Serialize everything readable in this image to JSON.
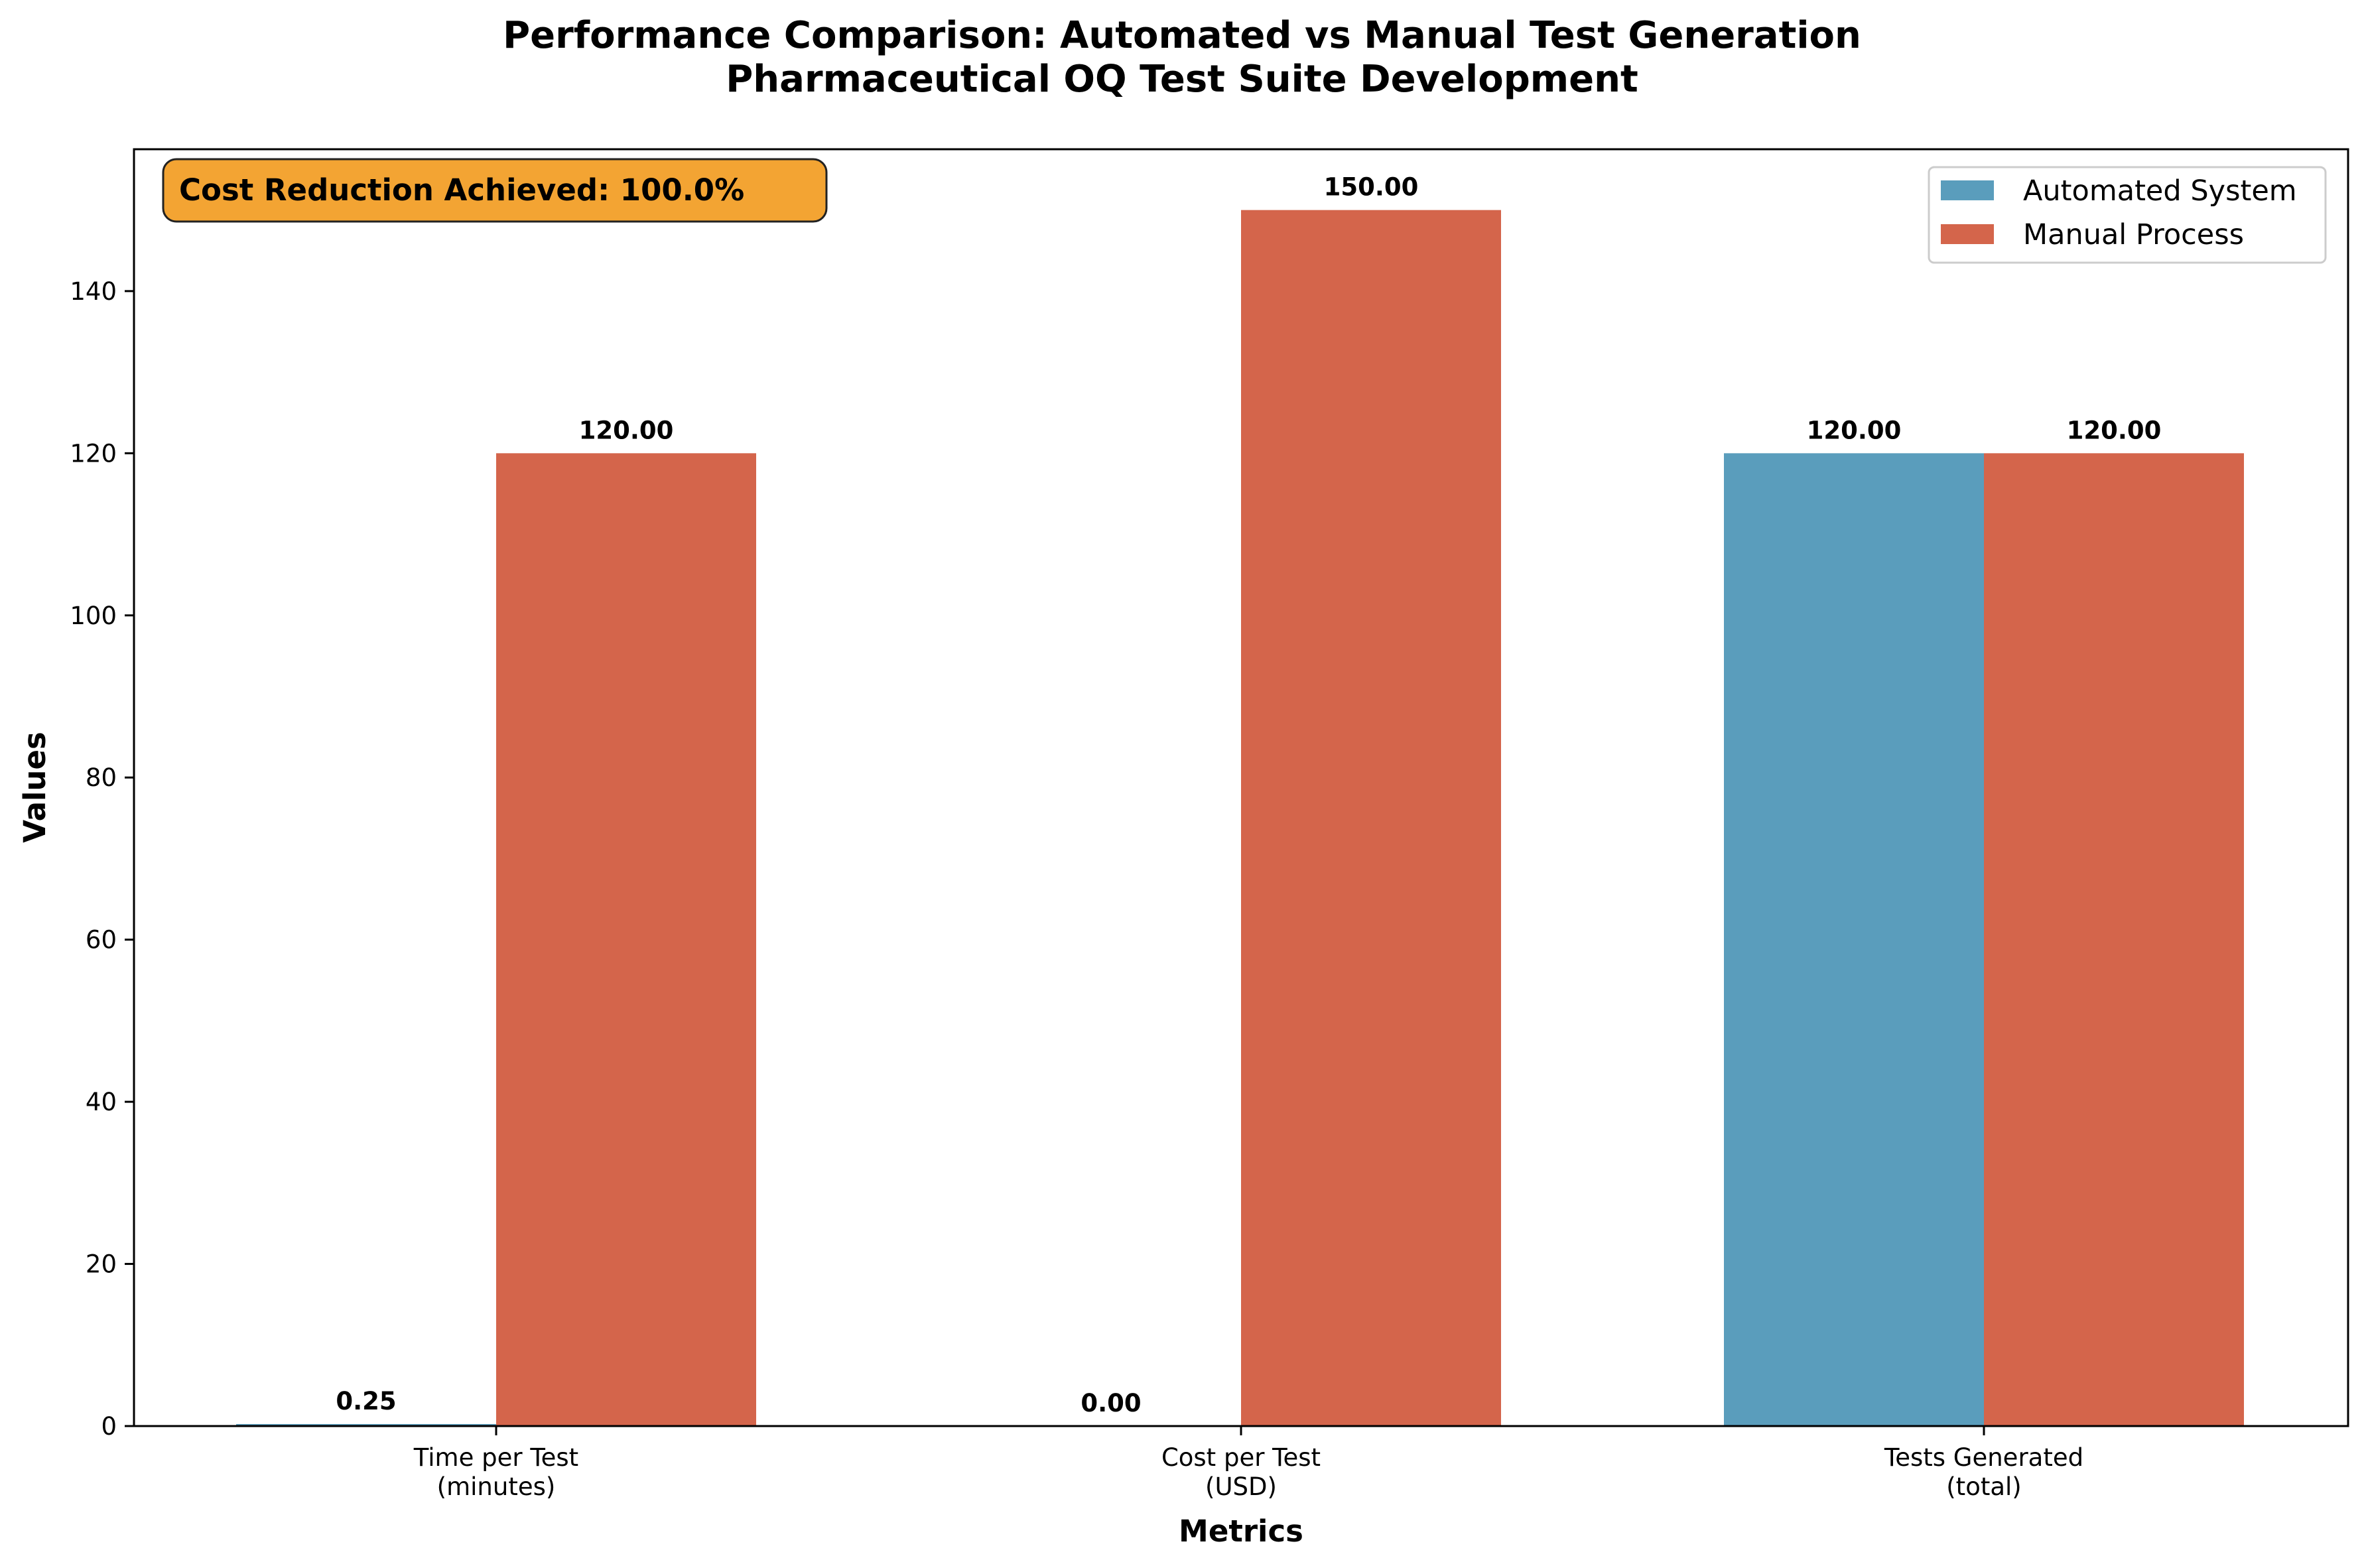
{
  "chart_data": {
    "type": "bar",
    "title": "Performance Comparison: Automated vs Manual Test Generation",
    "subtitle": "Pharmaceutical OQ Test Suite Development",
    "xlabel": "Metrics",
    "ylabel": "Values",
    "categories": [
      [
        "Time per Test",
        "(minutes)"
      ],
      [
        "Cost per Test",
        "(USD)"
      ],
      [
        "Tests Generated",
        "(total)"
      ]
    ],
    "series": [
      {
        "name": "Automated System",
        "color": "#5a9dbc",
        "values": [
          0.25,
          0.0,
          120
        ],
        "labels": [
          "0.25",
          "0.00",
          "120.00"
        ]
      },
      {
        "name": "Manual Process",
        "color": "#d4654b",
        "values": [
          120,
          150,
          120
        ],
        "labels": [
          "120.00",
          "150.00",
          "120.00"
        ]
      }
    ],
    "ylim": [
      0,
      157.5
    ],
    "yticks": [
      0,
      20,
      40,
      60,
      80,
      100,
      120,
      140
    ],
    "legend_position": "top-right",
    "grid": false,
    "annotation": {
      "text": "Cost Reduction Achieved: 100.0%",
      "background": "#f3a433",
      "position": "top-left"
    }
  }
}
